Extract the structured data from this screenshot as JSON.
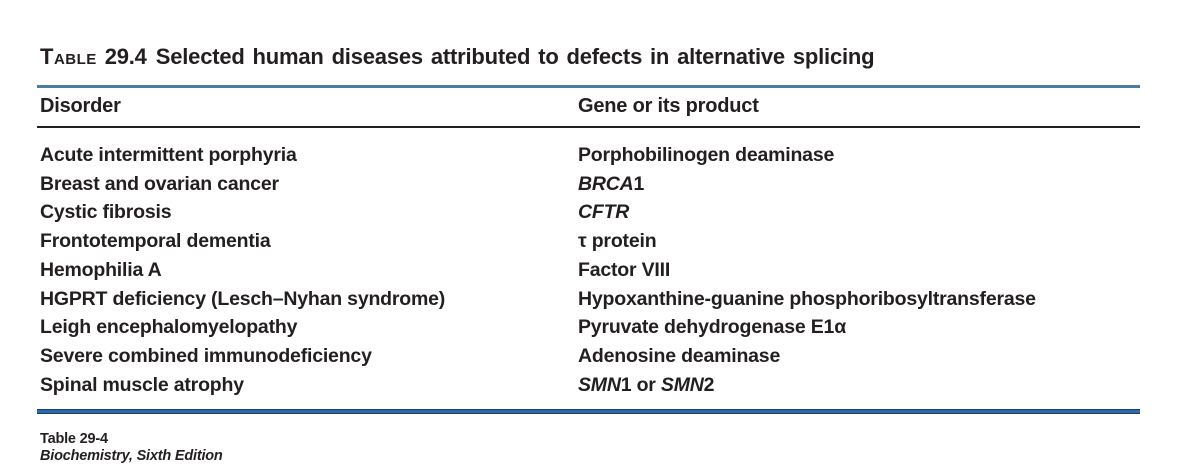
{
  "title": {
    "table_word": "Table",
    "number": "29.4",
    "text": "Selected human diseases attributed to defects in alternative splicing"
  },
  "table": {
    "columns": [
      "Disorder",
      "Gene or its product"
    ],
    "rows": [
      {
        "disorder": "Acute intermittent porphyria",
        "gene": [
          {
            "text": "Porphobilinogen deaminase",
            "italic": false
          }
        ]
      },
      {
        "disorder": "Breast and ovarian cancer",
        "gene": [
          {
            "text": "BRCA",
            "italic": true
          },
          {
            "text": "1",
            "italic": false
          }
        ]
      },
      {
        "disorder": "Cystic fibrosis",
        "gene": [
          {
            "text": "CFTR",
            "italic": true
          }
        ]
      },
      {
        "disorder": "Frontotemporal dementia",
        "gene": [
          {
            "text": "τ protein",
            "italic": false
          }
        ]
      },
      {
        "disorder": "Hemophilia A",
        "gene": [
          {
            "text": "Factor VIII",
            "italic": false
          }
        ]
      },
      {
        "disorder": "HGPRT deficiency (Lesch–Nyhan syndrome)",
        "gene": [
          {
            "text": "Hypoxanthine-guanine phosphoribosyltransferase",
            "italic": false
          }
        ]
      },
      {
        "disorder": "Leigh encephalomyelopathy",
        "gene": [
          {
            "text": "Pyruvate dehydrogenase E1α",
            "italic": false
          }
        ]
      },
      {
        "disorder": "Severe combined immunodeficiency",
        "gene": [
          {
            "text": "Adenosine deaminase",
            "italic": false
          }
        ]
      },
      {
        "disorder": "Spinal muscle atrophy",
        "gene": [
          {
            "text": "SMN",
            "italic": true
          },
          {
            "text": "1 or ",
            "italic": false
          },
          {
            "text": "SMN",
            "italic": true
          },
          {
            "text": "2",
            "italic": false
          }
        ]
      }
    ]
  },
  "footer": {
    "table_ref": "Table 29-4",
    "source": "Biochemistry, Sixth Edition"
  },
  "colors": {
    "text": "#231f20",
    "top_rule": "#4a7d9e",
    "header_rule": "#231f20",
    "bottom_rule_fill": "#2c6aa6",
    "bottom_rule_edge": "#17406e"
  }
}
